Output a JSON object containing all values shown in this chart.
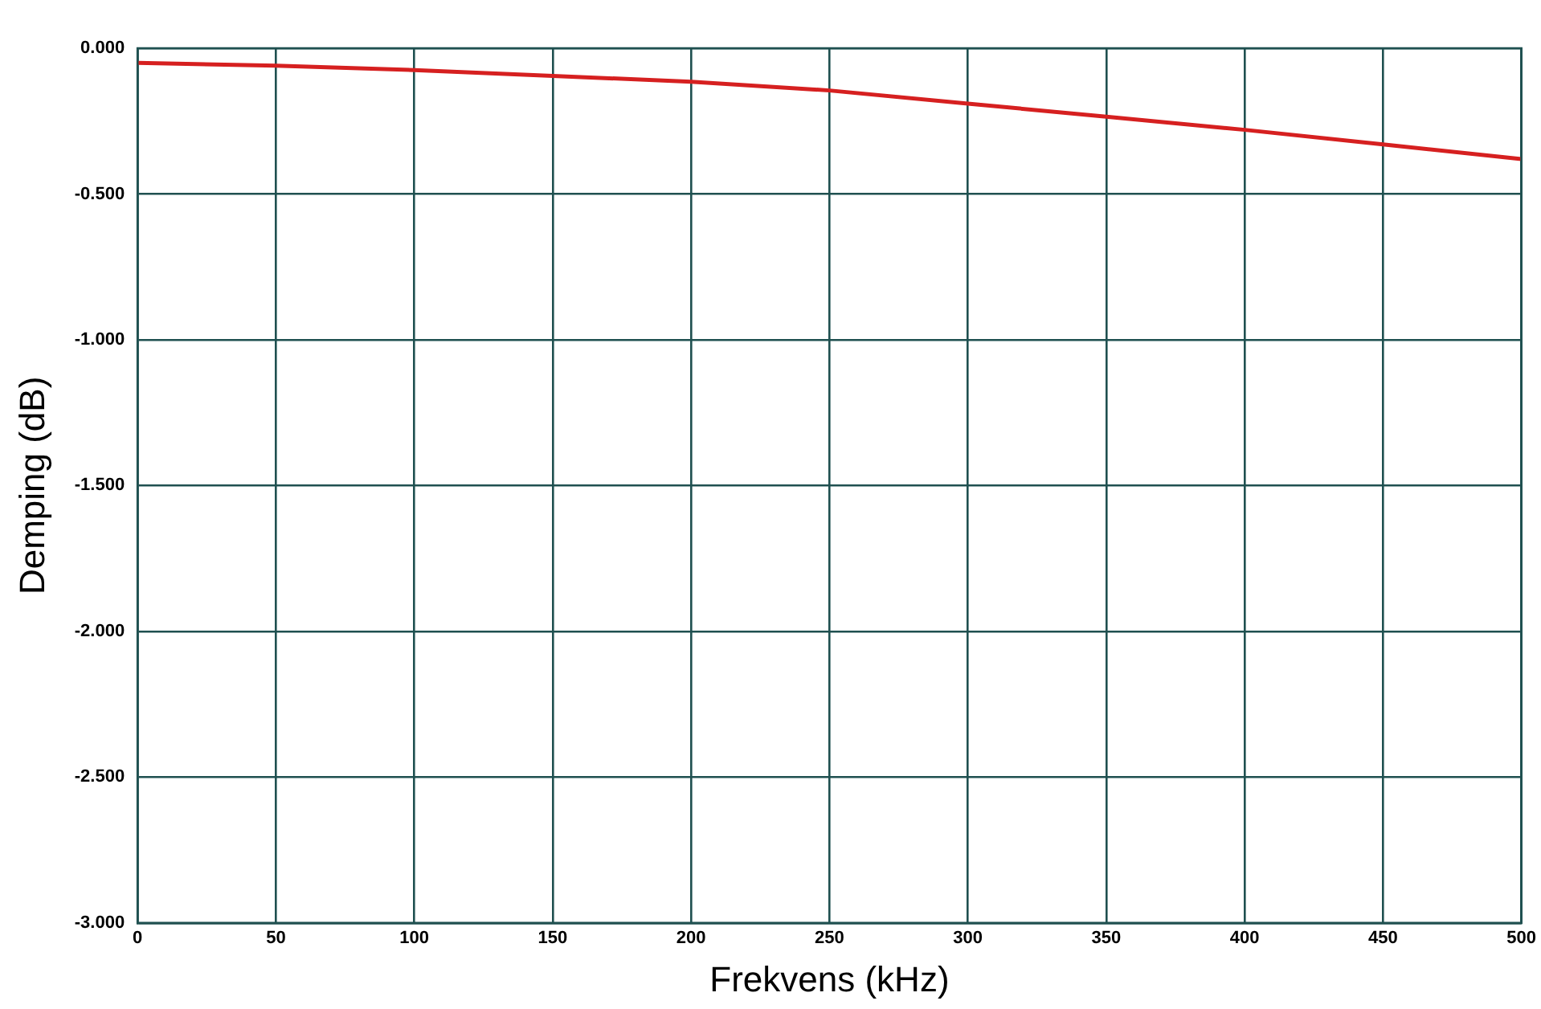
{
  "chart_data": {
    "type": "line",
    "xlabel": "Frekvens (kHz)",
    "ylabel": "Demping (dB)",
    "x": [
      0,
      50,
      100,
      150,
      200,
      250,
      300,
      350,
      400,
      450,
      500
    ],
    "series": [
      {
        "color": "#d62020",
        "values": [
          -0.05,
          -0.06,
          -0.075,
          -0.095,
          -0.115,
          -0.145,
          -0.19,
          -0.235,
          -0.28,
          -0.33,
          -0.38
        ]
      }
    ],
    "xlim": [
      0,
      500
    ],
    "xticks": [
      0,
      50,
      100,
      150,
      200,
      250,
      300,
      350,
      400,
      450,
      500
    ],
    "ylim": [
      -3,
      0
    ],
    "yticks": [
      {
        "value": 0,
        "label": "0.000"
      },
      {
        "value": -0.5,
        "label": "-0.500"
      },
      {
        "value": -1,
        "label": "-1.000"
      },
      {
        "value": -1.5,
        "label": "-1.500"
      },
      {
        "value": -2,
        "label": "-2.000"
      },
      {
        "value": -2.5,
        "label": "-2.500"
      },
      {
        "value": -3,
        "label": "-3.000"
      }
    ],
    "grid": true,
    "legend": false,
    "marker": "none",
    "line_style": "solid"
  }
}
